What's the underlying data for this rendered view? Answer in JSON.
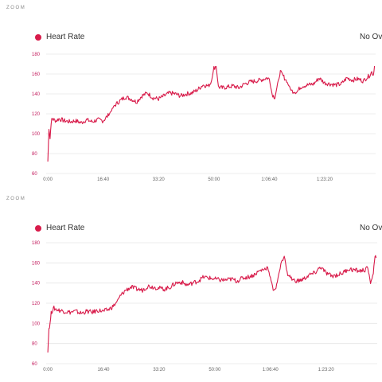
{
  "colors": {
    "series": "#d81b4a",
    "grid": "#e6e6e6",
    "ytick": "#c2185b",
    "xtick": "#666666"
  },
  "chart_data": [
    {
      "type": "line",
      "zoom_label": "ZOOM",
      "legend": [
        {
          "name": "Heart Rate",
          "color": "#d81b4a"
        }
      ],
      "overlay_label": "No Ove",
      "x_ticks": [
        "0:00",
        "16:40",
        "33:20",
        "50:00",
        "1:06:40",
        "1:23:20"
      ],
      "x_tick_seconds": [
        0,
        1000,
        2000,
        3000,
        4000,
        5000
      ],
      "xlim": [
        -30,
        5920
      ],
      "ylim": [
        60,
        180
      ],
      "y_ticks": [
        60,
        80,
        100,
        120,
        140,
        160,
        180
      ],
      "grid": true,
      "series": [
        {
          "name": "Heart Rate",
          "x": [
            0,
            20,
            40,
            60,
            80,
            110,
            150,
            200,
            300,
            400,
            500,
            600,
            700,
            800,
            900,
            1000,
            1100,
            1200,
            1300,
            1400,
            1500,
            1600,
            1700,
            1800,
            1900,
            2000,
            2100,
            2200,
            2300,
            2400,
            2500,
            2600,
            2700,
            2800,
            2900,
            2950,
            3000,
            3040,
            3080,
            3150,
            3250,
            3350,
            3450,
            3550,
            3650,
            3750,
            3850,
            3950,
            4000,
            4050,
            4100,
            4150,
            4200,
            4300,
            4400,
            4500,
            4550,
            4600,
            4700,
            4800,
            4900,
            5000,
            5100,
            5200,
            5300,
            5400,
            5500,
            5600,
            5700,
            5750,
            5800,
            5850,
            5880,
            5900
          ],
          "y": [
            72,
            105,
            95,
            112,
            115,
            114,
            113,
            115,
            113,
            112,
            113,
            111,
            114,
            112,
            114,
            113,
            119,
            128,
            133,
            137,
            135,
            132,
            138,
            141,
            136,
            135,
            138,
            141,
            140,
            138,
            140,
            141,
            144,
            149,
            148,
            152,
            166,
            168,
            147,
            146,
            147,
            148,
            146,
            150,
            152,
            153,
            154,
            156,
            155,
            140,
            136,
            150,
            162,
            154,
            143,
            142,
            146,
            148,
            149,
            150,
            156,
            151,
            150,
            149,
            150,
            156,
            154,
            155,
            153,
            156,
            158,
            162,
            159,
            168
          ]
        }
      ]
    },
    {
      "type": "line",
      "zoom_label": "ZOOM",
      "legend": [
        {
          "name": "Heart Rate",
          "color": "#d81b4a"
        }
      ],
      "overlay_label": "No Ov",
      "x_ticks": [
        "0:00",
        "16:40",
        "33:20",
        "50:00",
        "1:06:40",
        "1:23:20"
      ],
      "x_tick_seconds": [
        0,
        1000,
        2000,
        3000,
        4000,
        5000
      ],
      "xlim": [
        -30,
        5920
      ],
      "ylim": [
        60,
        180
      ],
      "y_ticks": [
        60,
        80,
        100,
        120,
        140,
        160,
        180
      ],
      "grid": true,
      "series": [
        {
          "name": "Heart Rate",
          "x": [
            0,
            20,
            40,
            60,
            80,
            110,
            150,
            200,
            300,
            400,
            500,
            600,
            700,
            800,
            900,
            1000,
            1100,
            1200,
            1300,
            1400,
            1500,
            1600,
            1700,
            1800,
            1900,
            2000,
            2100,
            2200,
            2300,
            2400,
            2500,
            2600,
            2700,
            2800,
            2900,
            3000,
            3100,
            3200,
            3300,
            3400,
            3500,
            3600,
            3700,
            3800,
            3900,
            3950,
            4000,
            4050,
            4100,
            4150,
            4200,
            4250,
            4300,
            4400,
            4500,
            4600,
            4700,
            4800,
            4900,
            5000,
            5100,
            5200,
            5300,
            5400,
            5500,
            5600,
            5700,
            5750,
            5800,
            5850,
            5880,
            5900
          ],
          "y": [
            72,
            95,
            100,
            110,
            113,
            115,
            114,
            113,
            112,
            111,
            112,
            110,
            112,
            111,
            113,
            112,
            114,
            118,
            127,
            133,
            136,
            134,
            133,
            137,
            136,
            135,
            134,
            136,
            140,
            141,
            138,
            140,
            142,
            146,
            145,
            144,
            143,
            143,
            144,
            142,
            145,
            146,
            148,
            152,
            154,
            156,
            145,
            134,
            135,
            148,
            162,
            167,
            150,
            143,
            142,
            144,
            148,
            150,
            156,
            150,
            147,
            148,
            150,
            154,
            153,
            152,
            153,
            155,
            140,
            150,
            168,
            165
          ]
        }
      ]
    }
  ]
}
